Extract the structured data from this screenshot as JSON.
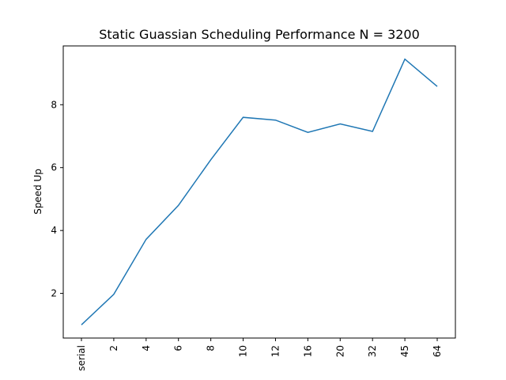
{
  "chart_data": {
    "type": "line",
    "title": "Static Guassian Scheduling Performance N = 3200",
    "xlabel": "",
    "ylabel": "Speed Up",
    "categories": [
      "serial",
      "2",
      "4",
      "6",
      "8",
      "10",
      "12",
      "16",
      "20",
      "32",
      "45",
      "64"
    ],
    "series": [
      {
        "values": [
          1.0,
          1.97,
          3.72,
          4.8,
          6.25,
          7.6,
          7.51,
          7.12,
          7.39,
          7.15,
          9.45,
          8.58
        ]
      }
    ],
    "ylim": [
      0.58,
      9.87
    ],
    "yticks": [
      2,
      4,
      6,
      8
    ],
    "grid": false,
    "colors": {
      "line": "#1f77b4"
    }
  }
}
